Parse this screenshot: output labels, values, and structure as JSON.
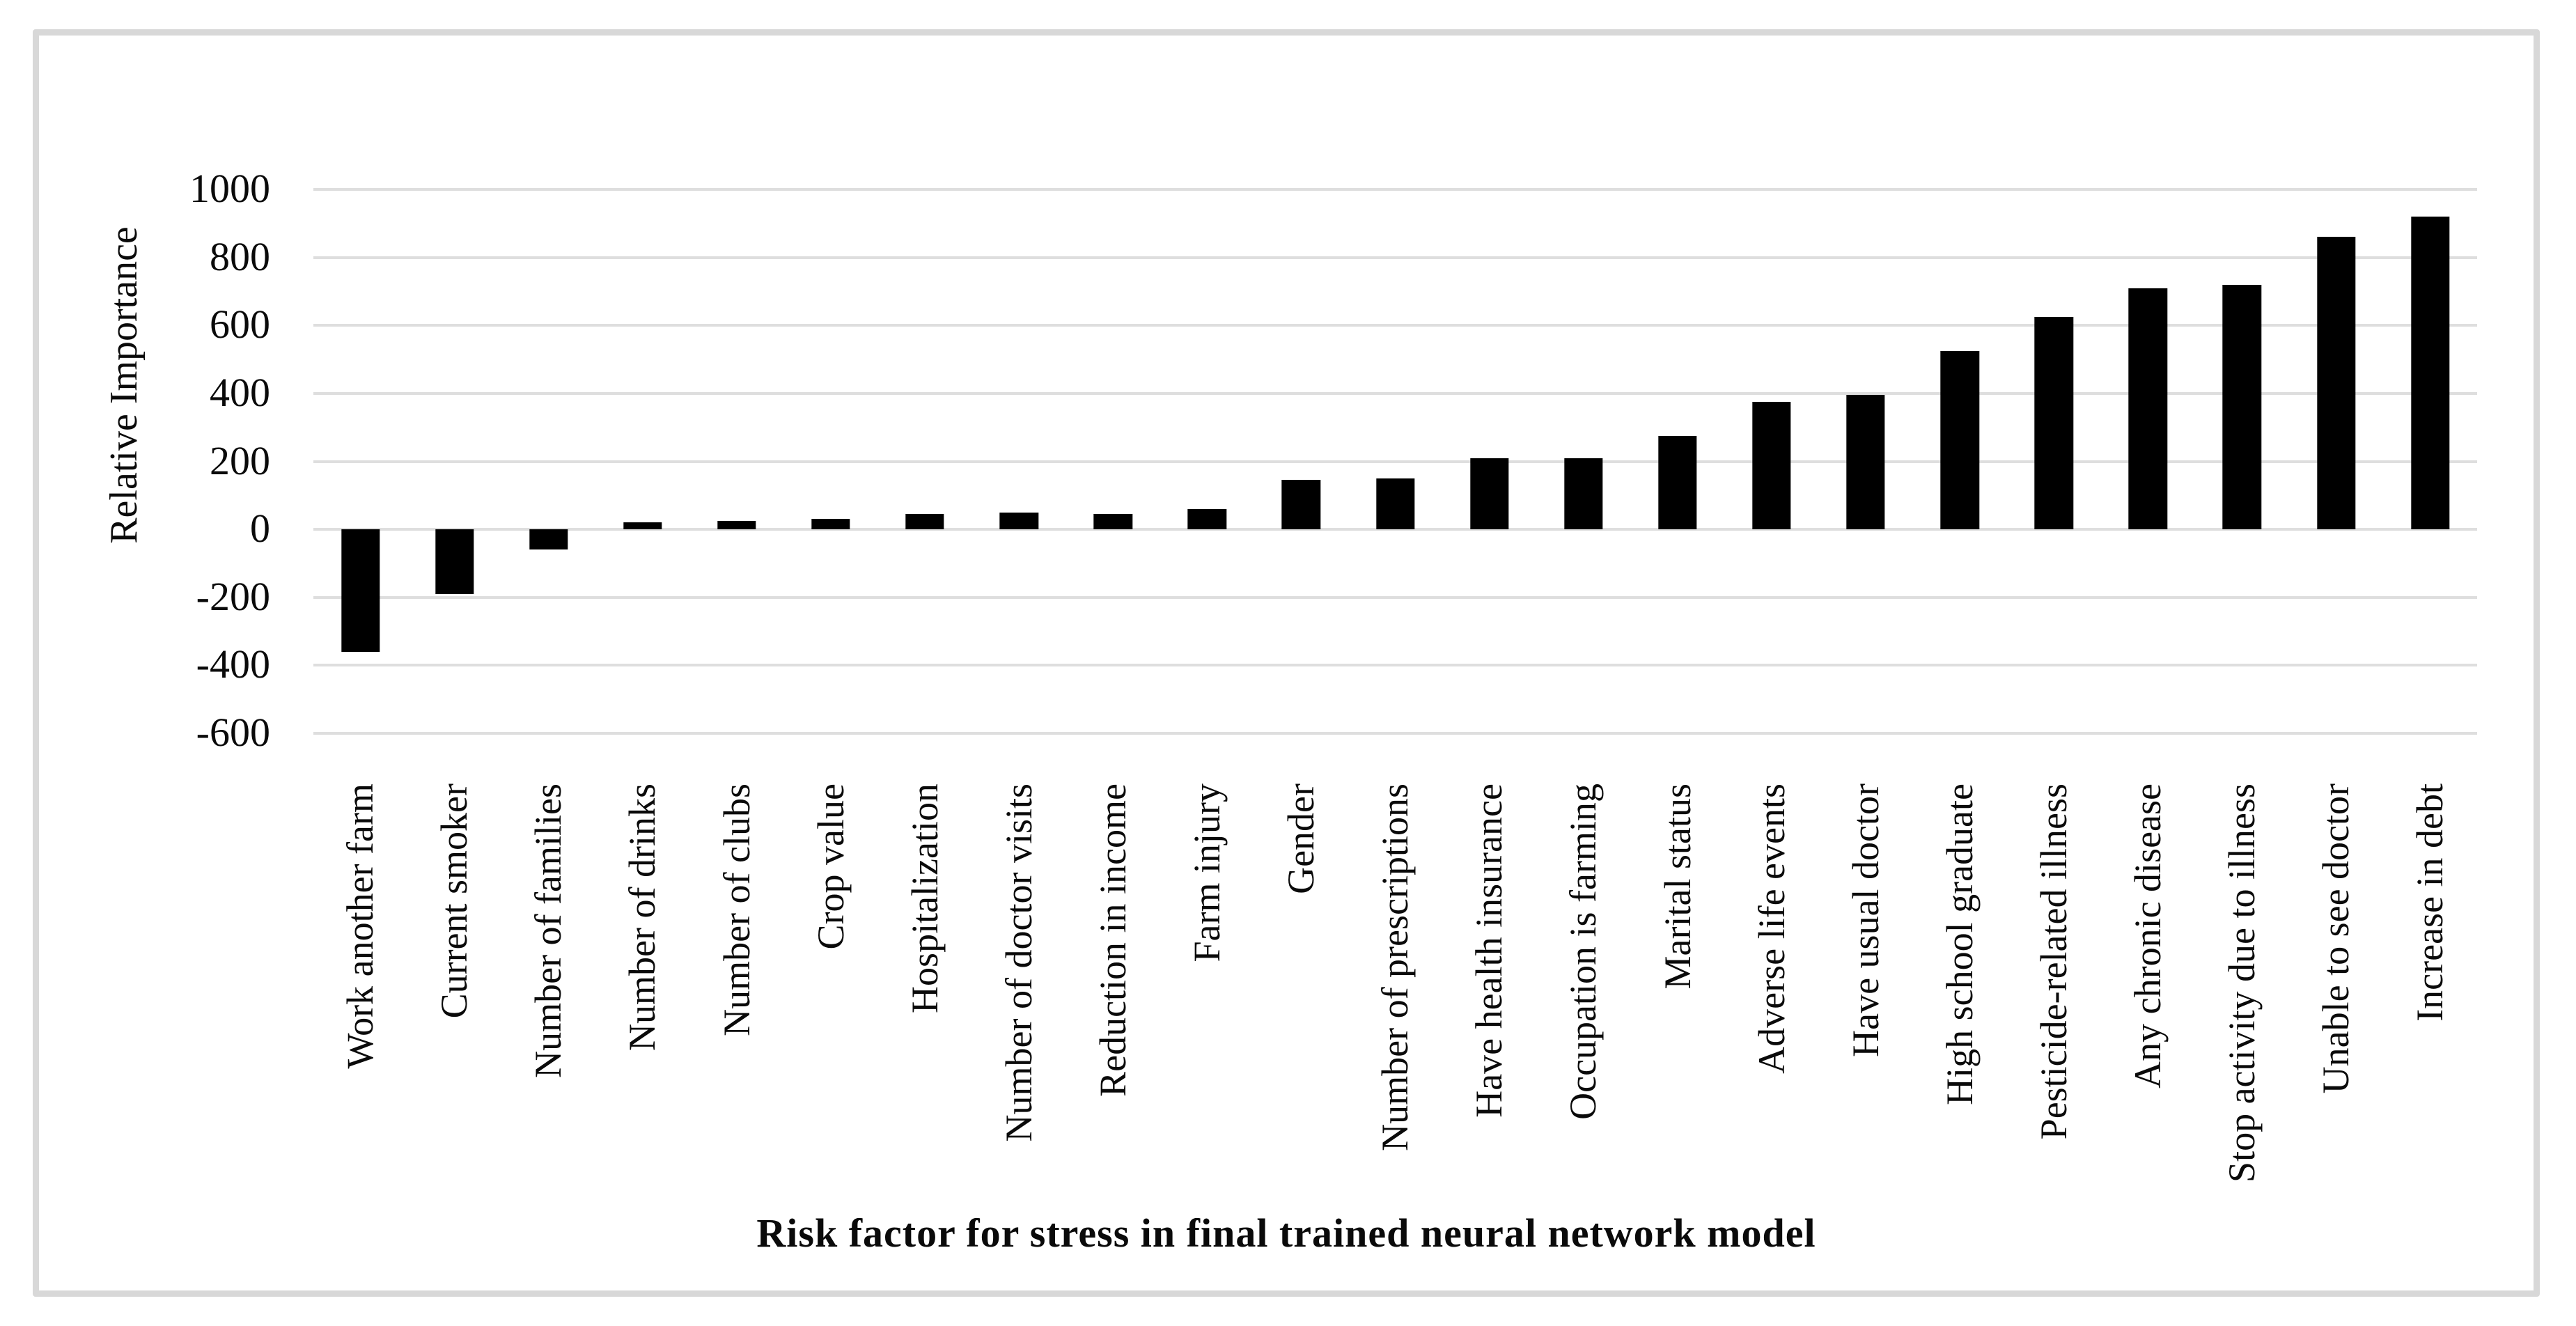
{
  "figure": {
    "background_color": "#ffffff",
    "border_color": "#d8d8d8",
    "gridline_color": "#dedede",
    "bar_color": "#000000",
    "text_color": "#0a0a0a"
  },
  "chart_data": {
    "type": "bar",
    "title": "",
    "xlabel": "Risk factor for stress in final trained neural network model",
    "ylabel": "Relative Importance",
    "ylim": [
      -600,
      1000
    ],
    "yticks": [
      1000,
      800,
      600,
      400,
      200,
      0,
      -200,
      -400,
      -600
    ],
    "grid": true,
    "legend_position": "none",
    "categories": [
      "Work another farm",
      "Current smoker",
      "Number of families",
      "Number of drinks",
      "Number of clubs",
      "Crop value",
      "Hospitalization",
      "Number of doctor visits",
      "Reduction in income",
      "Farm injury",
      "Gender",
      "Number of prescriptions",
      "Have health insurance",
      "Occupation is farming",
      "Marital status",
      "Adverse life events",
      "Have usual doctor",
      "High school graduate",
      "Pesticide-related illness",
      "Any chronic disease",
      "Stop activity due to illness",
      "Unable to see doctor",
      "Increase in debt"
    ],
    "values": [
      -360,
      -190,
      -60,
      20,
      25,
      30,
      45,
      50,
      45,
      60,
      145,
      150,
      210,
      210,
      275,
      375,
      395,
      525,
      625,
      710,
      720,
      860,
      920
    ]
  }
}
